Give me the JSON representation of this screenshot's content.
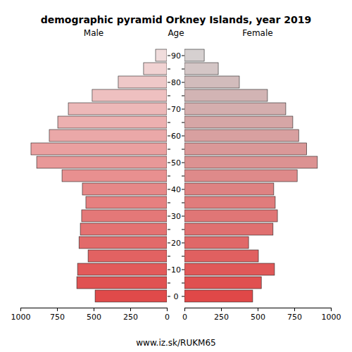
{
  "chart_data": {
    "type": "bar",
    "orientation": "horizontal",
    "title": "demographic pyramid Orkney Islands, year 2019",
    "ylabel": "Age",
    "caption": "www.iz.sk/RUKM65",
    "categories": [
      "0",
      null,
      "10",
      null,
      "20",
      null,
      "30",
      null,
      "40",
      null,
      "50",
      null,
      "60",
      null,
      "70",
      null,
      "80",
      null,
      "90"
    ],
    "series": [
      {
        "name": "Male",
        "values": [
          490,
          615,
          610,
          538,
          600,
          591,
          582,
          553,
          577,
          716,
          889,
          928,
          803,
          745,
          673,
          510,
          332,
          159,
          77
        ],
        "colors": [
          "#e04a4a",
          "#e05252",
          "#e25a5a",
          "#e26262",
          "#e26a6a",
          "#e47272",
          "#e47878",
          "#e68080",
          "#e68888",
          "#e89090",
          "#e89898",
          "#eaa0a0",
          "#eaa8a8",
          "#ecb0b0",
          "#ecb8b8",
          "#eec0c0",
          "#eec8c8",
          "#f0d2d2",
          "#f0dcdc"
        ]
      },
      {
        "name": "Female",
        "values": [
          466,
          525,
          615,
          505,
          438,
          605,
          635,
          620,
          610,
          770,
          908,
          835,
          780,
          740,
          692,
          567,
          375,
          231,
          135
        ],
        "colors": [
          "#e04848",
          "#e05050",
          "#e05858",
          "#e06060",
          "#e06868",
          "#e07070",
          "#e07676",
          "#e07c7c",
          "#de8282",
          "#de8a8a",
          "#dc9292",
          "#da9898",
          "#d8a0a0",
          "#d6a6a6",
          "#d4aeae",
          "#d2b4b4",
          "#d2bcbc",
          "#d4c6c6",
          "#d6d0d0"
        ]
      }
    ],
    "xlim": [
      0,
      1000
    ],
    "xticks": [
      0,
      250,
      500,
      750,
      1000
    ]
  }
}
